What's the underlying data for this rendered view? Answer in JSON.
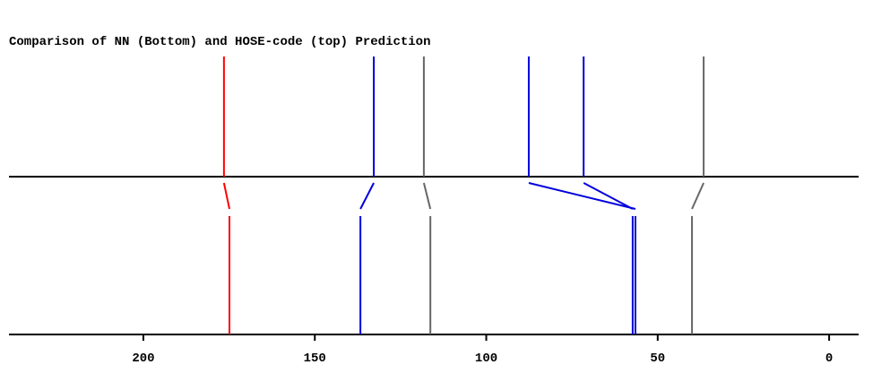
{
  "chart_data": {
    "type": "stick",
    "title": "Comparison of NN (Bottom) and HOSE-code (top) Prediction",
    "series": [
      {
        "x": [
          176.5,
          132.8,
          118.2,
          87.6,
          71.6,
          36.6
        ],
        "colors": [
          "#ff0000",
          "#0000dd",
          "#666666",
          "#0000dd",
          "#0000dd",
          "#666666"
        ]
      },
      {
        "x": [
          174.9,
          136.7,
          116.3,
          56.5,
          57.3,
          40.0
        ],
        "colors": [
          "#ff0000",
          "#0000dd",
          "#666666",
          "#0000dd",
          "#0000dd",
          "#666666"
        ]
      }
    ],
    "xlim": [
      239.2,
      -8.6
    ],
    "xticks": [
      200,
      150,
      100,
      50,
      0
    ]
  }
}
